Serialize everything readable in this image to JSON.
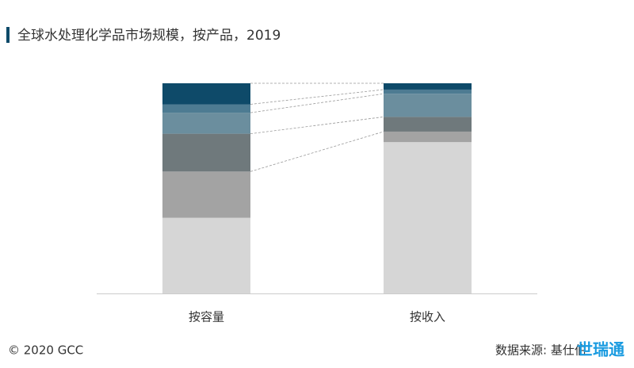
{
  "chart_data": {
    "type": "stacked_bar_100",
    "title": "全球水处理化学品市场规模，按产品，2019",
    "categories": [
      "按容量",
      "按收入"
    ],
    "series": [
      {
        "color": "#d6d6d6",
        "values": [
          36,
          72
        ]
      },
      {
        "color": "#a3a3a3",
        "values": [
          22,
          5
        ]
      },
      {
        "color": "#6f797c",
        "values": [
          18,
          7
        ]
      },
      {
        "color": "#6b8e9e",
        "values": [
          10,
          11
        ]
      },
      {
        "color": "#4d7b92",
        "values": [
          4,
          2
        ]
      },
      {
        "color": "#0e4a69",
        "values": [
          10,
          3
        ]
      }
    ],
    "ylim": [
      0,
      100
    ],
    "footer": {
      "copyright": "© 2020 GCC",
      "source": "数据来源: 基仕伯",
      "logo": "世瑞通"
    }
  }
}
